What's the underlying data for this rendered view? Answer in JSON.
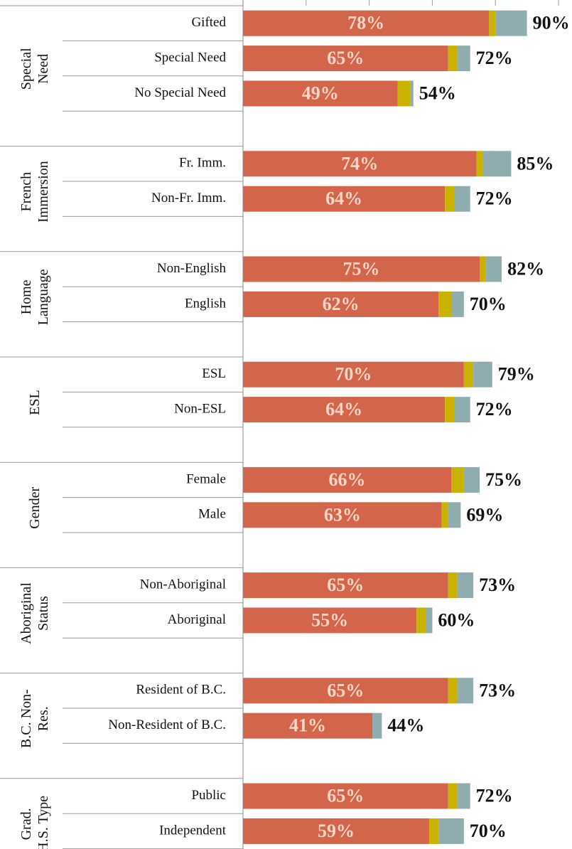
{
  "chart_data": {
    "type": "bar",
    "orientation": "horizontal",
    "stacked": true,
    "xlim": [
      0,
      100
    ],
    "xticks": [
      0,
      20,
      40,
      60,
      80,
      100
    ],
    "colors": [
      "#d3654b",
      "#c9b200",
      "#8fadaf"
    ],
    "groups": [
      {
        "label": [
          "Special",
          "Need"
        ],
        "categories": [
          "Gifted",
          "Special Need",
          "No Special Need"
        ],
        "series": [
          {
            "values": [
              78,
              65,
              49
            ],
            "value_labels": [
              "78%",
              "65%",
              "49%"
            ]
          },
          {
            "values": [
              2,
              3,
              4
            ]
          },
          {
            "values": [
              10,
              4,
              1
            ]
          }
        ],
        "totals": [
          90,
          72,
          54
        ],
        "total_labels": [
          "90%",
          "72%",
          "54%"
        ]
      },
      {
        "label": [
          "French",
          "Immersion"
        ],
        "categories": [
          "Fr. Imm.",
          "Non-Fr. Imm."
        ],
        "series": [
          {
            "values": [
              74,
              64
            ],
            "value_labels": [
              "74%",
              "64%"
            ]
          },
          {
            "values": [
              2,
              3
            ]
          },
          {
            "values": [
              9,
              5
            ]
          }
        ],
        "totals": [
          85,
          72
        ],
        "total_labels": [
          "85%",
          "72%"
        ]
      },
      {
        "label": [
          "Home",
          "Language"
        ],
        "categories": [
          "Non-English",
          "English"
        ],
        "series": [
          {
            "values": [
              75,
              62
            ],
            "value_labels": [
              "75%",
              "62%"
            ]
          },
          {
            "values": [
              2,
              4
            ]
          },
          {
            "values": [
              5,
              4
            ]
          }
        ],
        "totals": [
          82,
          70
        ],
        "total_labels": [
          "82%",
          "70%"
        ]
      },
      {
        "label": [
          "ESL"
        ],
        "categories": [
          "ESL",
          "Non-ESL"
        ],
        "series": [
          {
            "values": [
              70,
              64
            ],
            "value_labels": [
              "70%",
              "64%"
            ]
          },
          {
            "values": [
              3,
              3
            ]
          },
          {
            "values": [
              6,
              5
            ]
          }
        ],
        "totals": [
          79,
          72
        ],
        "total_labels": [
          "79%",
          "72%"
        ]
      },
      {
        "label": [
          "Gender"
        ],
        "categories": [
          "Female",
          "Male"
        ],
        "series": [
          {
            "values": [
              66,
              63
            ],
            "value_labels": [
              "66%",
              "63%"
            ]
          },
          {
            "values": [
              4,
              2
            ]
          },
          {
            "values": [
              5,
              4
            ]
          }
        ],
        "totals": [
          75,
          69
        ],
        "total_labels": [
          "75%",
          "69%"
        ]
      },
      {
        "label": [
          "Aboriginal",
          "Status"
        ],
        "categories": [
          "Non-Aboriginal",
          "Aboriginal"
        ],
        "series": [
          {
            "values": [
              65,
              55
            ],
            "value_labels": [
              "65%",
              "55%"
            ]
          },
          {
            "values": [
              3,
              3
            ]
          },
          {
            "values": [
              5,
              2
            ]
          }
        ],
        "totals": [
          73,
          60
        ],
        "total_labels": [
          "73%",
          "60%"
        ]
      },
      {
        "label": [
          "B.C. Non-",
          "Res."
        ],
        "categories": [
          "Resident of B.C.",
          "Non-Resident of B.C."
        ],
        "series": [
          {
            "values": [
              65,
              41
            ],
            "value_labels": [
              "65%",
              "41%"
            ]
          },
          {
            "values": [
              3,
              0
            ]
          },
          {
            "values": [
              5,
              3
            ]
          }
        ],
        "totals": [
          73,
          44
        ],
        "total_labels": [
          "73%",
          "44%"
        ]
      },
      {
        "label": [
          "Grad.",
          "H.S. Type"
        ],
        "categories": [
          "Public",
          "Independent"
        ],
        "series": [
          {
            "values": [
              65,
              59
            ],
            "value_labels": [
              "65%",
              "59%"
            ]
          },
          {
            "values": [
              3,
              3
            ]
          },
          {
            "values": [
              4,
              8
            ]
          }
        ],
        "totals": [
          72,
          70
        ],
        "total_labels": [
          "72%",
          "70%"
        ]
      }
    ]
  }
}
